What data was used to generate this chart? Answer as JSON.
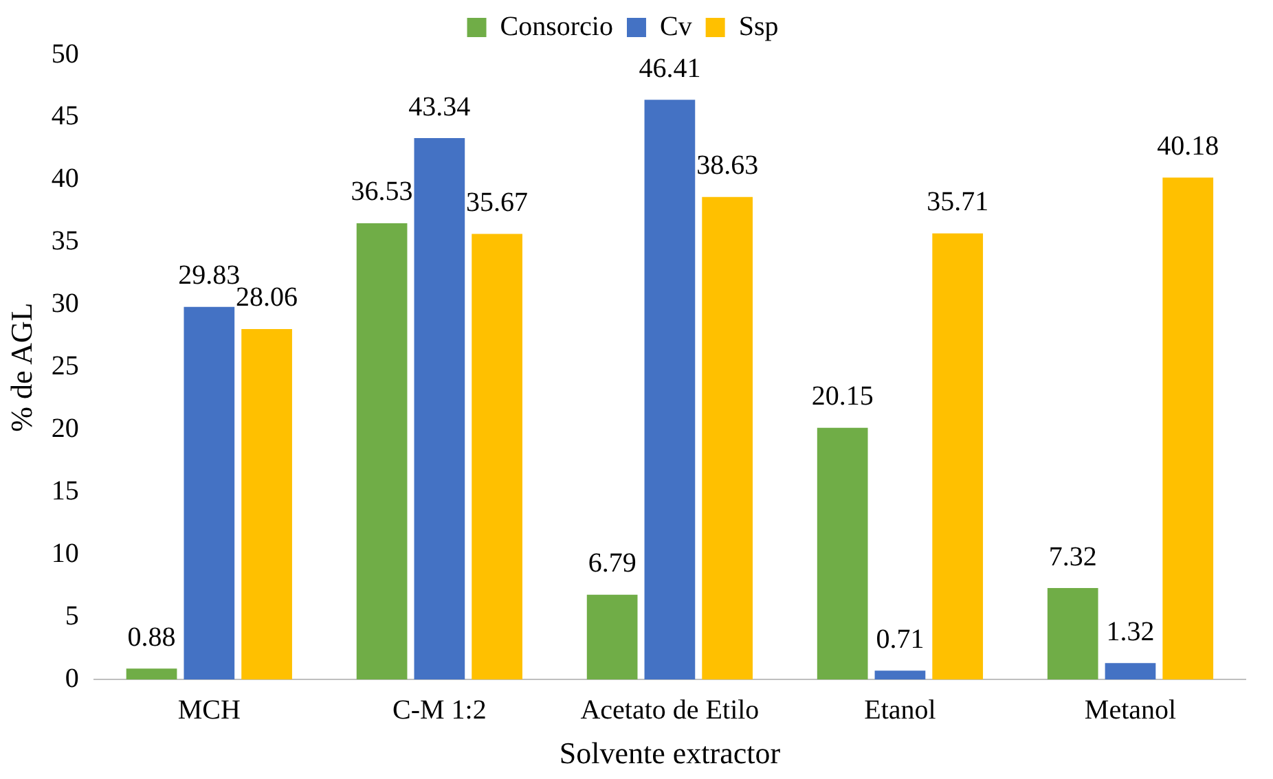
{
  "chart_data": {
    "type": "bar",
    "xlabel": "Solvente extractor",
    "ylabel": "% de AGL",
    "categories": [
      "MCH",
      "C-M 1:2",
      "Acetato de Etilo",
      "Etanol",
      "Metanol"
    ],
    "series": [
      {
        "name": "Consorcio",
        "color": "#70ad47",
        "values": [
          0.88,
          36.53,
          6.79,
          20.15,
          7.32
        ]
      },
      {
        "name": "Cv",
        "color": "#4472c4",
        "values": [
          29.83,
          43.34,
          46.41,
          0.71,
          1.32
        ]
      },
      {
        "name": "Ssp",
        "color": "#ffc000",
        "values": [
          28.06,
          35.67,
          38.63,
          35.71,
          40.18
        ]
      }
    ],
    "ylim": [
      0,
      50
    ],
    "yticks": [
      0,
      5,
      10,
      15,
      20,
      25,
      30,
      35,
      40,
      45,
      50
    ],
    "grid": false,
    "legend": "top",
    "data_labels": true
  }
}
